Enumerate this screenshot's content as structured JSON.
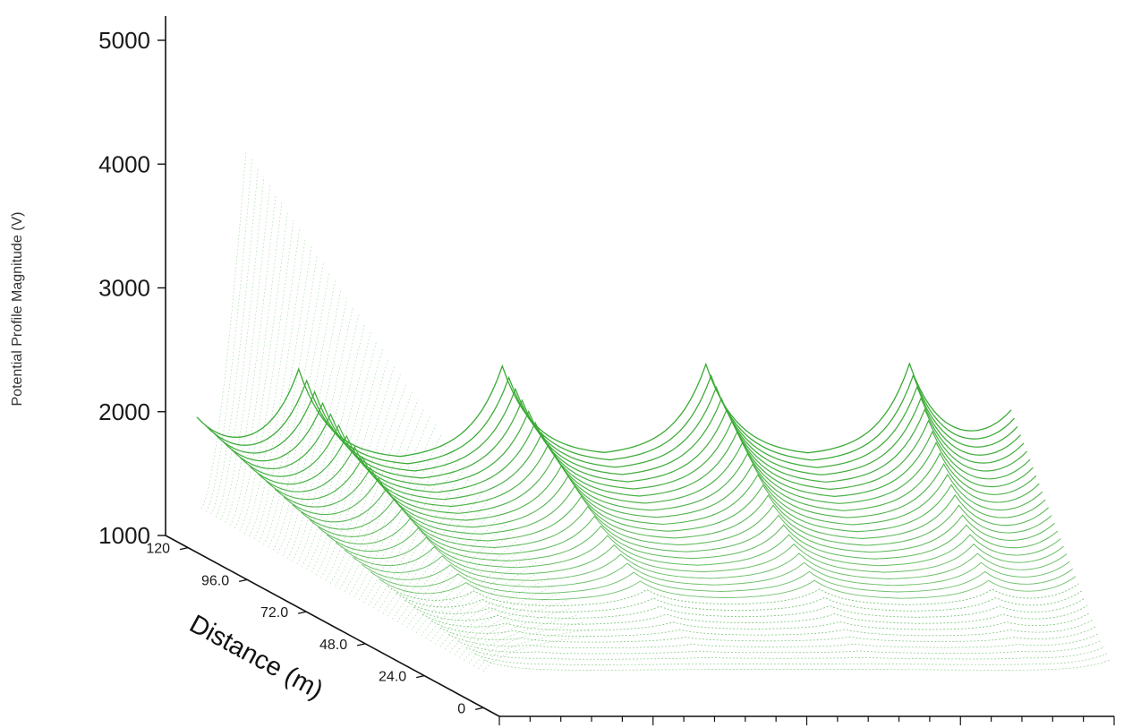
{
  "chart_data": {
    "type": "surface-wireframe",
    "zlabel": "Potential Profile Magnitude (V)",
    "ylabel": "Distance (m)",
    "xlabel": "",
    "z_ticks": [
      "5000",
      "4000",
      "3000",
      "2000",
      "1000"
    ],
    "z_range": [
      1000,
      5000
    ],
    "distance_ticks": [
      "120",
      "96.0",
      "72.0",
      "48.0",
      "24.0",
      "0"
    ],
    "distance_range": [
      0,
      120
    ],
    "x_tick_count": 21,
    "x_ticks_labeled": [],
    "series_color": "#3aaa35",
    "peak_count_per_row": 4,
    "peak_value_far_row_v": 4200,
    "base_value_near_row_v": 1000
  }
}
